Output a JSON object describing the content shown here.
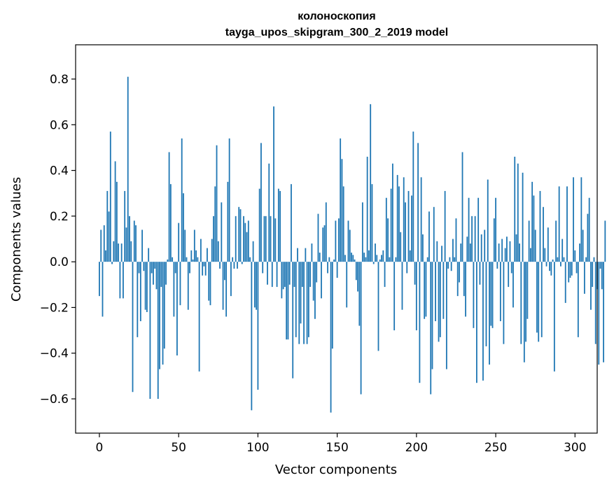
{
  "chart_data": {
    "type": "bar",
    "title_line1": "колоноскопия",
    "title_line2": "tayga_upos_skipgram_300_2_2019 model",
    "xlabel": "Vector components",
    "ylabel": "Components values",
    "xlim": [
      -15,
      314
    ],
    "ylim": [
      -0.75,
      0.95
    ],
    "xticks": [
      0,
      50,
      100,
      150,
      200,
      250,
      300
    ],
    "yticks": [
      0.8,
      0.6,
      0.4,
      0.2,
      0.0,
      -0.2,
      -0.4,
      -0.6
    ],
    "xtick_labels": [
      "0",
      "50",
      "100",
      "150",
      "200",
      "250",
      "300"
    ],
    "ytick_labels": [
      "0.8",
      "0.6",
      "0.4",
      "0.2",
      "0.0",
      "−0.2",
      "−0.4",
      "−0.6"
    ],
    "bar_color": "#1f77b4",
    "values": [
      -0.15,
      0.14,
      -0.24,
      0.16,
      0.05,
      0.31,
      0.22,
      0.57,
      -0.01,
      0.09,
      0.44,
      0.35,
      0.08,
      -0.16,
      0.08,
      -0.16,
      0.31,
      0.15,
      0.81,
      0.2,
      0.09,
      -0.57,
      0.18,
      0.16,
      -0.33,
      -0.05,
      -0.26,
      0.14,
      -0.04,
      -0.21,
      -0.22,
      0.06,
      -0.6,
      -0.05,
      -0.1,
      -0.03,
      -0.12,
      -0.6,
      -0.47,
      -0.11,
      -0.45,
      -0.38,
      -0.1,
      0.01,
      0.48,
      0.34,
      0.02,
      -0.24,
      -0.05,
      -0.41,
      0.17,
      -0.19,
      0.54,
      0.3,
      0.14,
      0.02,
      -0.21,
      -0.05,
      0.05,
      0.01,
      0.14,
      0.05,
      0.02,
      -0.48,
      0.1,
      -0.06,
      -0.02,
      -0.06,
      0.06,
      -0.17,
      -0.19,
      0.1,
      0.2,
      0.33,
      0.51,
      0.09,
      -0.03,
      0.26,
      -0.21,
      -0.08,
      -0.24,
      0.35,
      0.54,
      -0.15,
      0.02,
      -0.03,
      0.2,
      -0.03,
      0.24,
      0.23,
      -0.01,
      0.2,
      0.17,
      0.13,
      0.18,
      0.02,
      -0.65,
      0.09,
      -0.2,
      -0.21,
      -0.56,
      0.32,
      0.52,
      -0.05,
      0.2,
      0.2,
      -0.1,
      0.43,
      0.2,
      -0.11,
      0.68,
      0.19,
      -0.11,
      0.32,
      0.31,
      -0.16,
      -0.12,
      -0.11,
      -0.34,
      -0.34,
      -0.1,
      0.34,
      -0.51,
      -0.11,
      -0.33,
      0.06,
      -0.36,
      -0.27,
      -0.11,
      -0.36,
      0.06,
      -0.36,
      -0.33,
      -0.11,
      0.08,
      -0.17,
      -0.25,
      -0.09,
      0.21,
      0.04,
      -0.16,
      0.15,
      0.16,
      0.26,
      -0.05,
      0.02,
      -0.66,
      -0.38,
      0.01,
      0.18,
      -0.07,
      0.19,
      0.54,
      0.45,
      0.33,
      0.03,
      -0.2,
      0.18,
      0.14,
      0.04,
      0.03,
      0.01,
      -0.08,
      -0.13,
      -0.28,
      -0.58,
      0.26,
      0.04,
      0.02,
      0.46,
      0.05,
      0.69,
      0.34,
      -0.01,
      0.08,
      0.03,
      -0.39,
      0.01,
      0.03,
      0.05,
      -0.11,
      0.28,
      0.19,
      0.02,
      0.32,
      0.43,
      -0.3,
      0.02,
      0.38,
      0.33,
      0.13,
      -0.21,
      0.37,
      0.26,
      -0.05,
      0.31,
      0.05,
      0.29,
      0.57,
      -0.1,
      -0.3,
      0.52,
      -0.53,
      0.37,
      0.12,
      -0.25,
      -0.24,
      0.02,
      0.22,
      -0.58,
      -0.47,
      0.24,
      -0.26,
      0.09,
      -0.35,
      -0.33,
      0.07,
      -0.25,
      0.31,
      -0.47,
      -0.03,
      0.02,
      -0.04,
      0.1,
      0.02,
      0.19,
      -0.15,
      -0.09,
      0.08,
      0.48,
      -0.15,
      -0.24,
      0.11,
      0.28,
      0.08,
      0.2,
      -0.29,
      0.2,
      -0.53,
      0.28,
      -0.1,
      0.12,
      -0.52,
      0.14,
      -0.37,
      0.36,
      -0.45,
      -0.28,
      -0.29,
      0.19,
      0.28,
      -0.03,
      0.08,
      -0.26,
      0.1,
      -0.36,
      0.06,
      0.11,
      -0.11,
      0.09,
      -0.05,
      -0.2,
      0.46,
      0.12,
      0.43,
      0.08,
      -0.36,
      0.39,
      -0.44,
      -0.35,
      -0.25,
      0.18,
      0.06,
      0.35,
      0.29,
      0.14,
      -0.31,
      -0.35,
      0.31,
      -0.33,
      0.24,
      0.06,
      -0.02,
      0.15,
      -0.04,
      -0.06,
      0.01,
      -0.48,
      0.18,
      0.02,
      0.33,
      -0.02,
      0.1,
      0.02,
      -0.18,
      0.33,
      -0.09,
      -0.07,
      -0.06,
      0.37,
      0.05,
      -0.05,
      -0.33,
      0.08,
      0.37,
      0.14,
      -0.14,
      0.02,
      0.21,
      0.28,
      -0.21,
      -0.11,
      0.02,
      -0.36,
      -0.12,
      -0.45,
      -0.03,
      -0.12,
      -0.44,
      0.18
    ]
  }
}
